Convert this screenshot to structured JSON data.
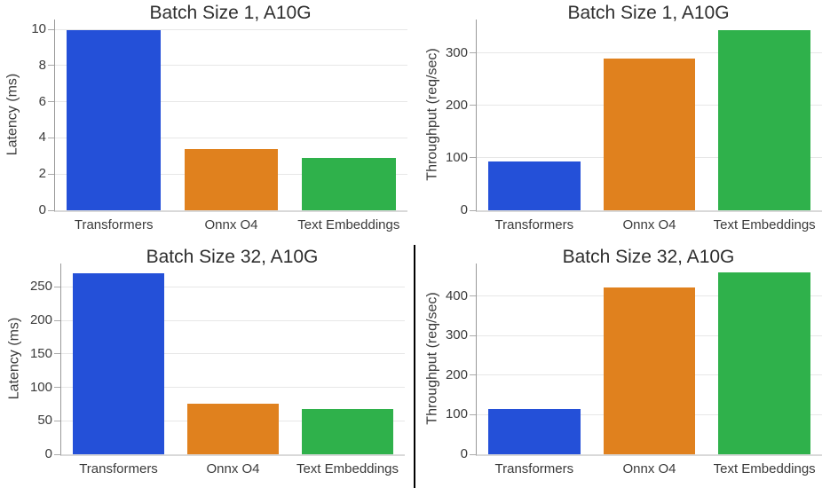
{
  "figure": {
    "background": "#ffffff",
    "divider_color": "#000000"
  },
  "palette": {
    "blue": "#2450d8",
    "orange": "#e0811e",
    "green": "#2fb14b",
    "gridline": "#e7e7e7",
    "spine": "#999999",
    "baseline": "#d9d9d9",
    "text": "#3b3b3b",
    "title_text": "#2e2e2e"
  },
  "chart_data": [
    {
      "id": "latency-batch1",
      "type": "bar",
      "title": "Batch Size 1, A10G",
      "xlabel": "",
      "ylabel": "Latency (ms)",
      "categories": [
        "Transformers",
        "Onnx O4",
        "Text Embeddings"
      ],
      "values": [
        9.95,
        3.4,
        2.9
      ],
      "yticks": [
        0,
        2,
        4,
        6,
        8,
        10
      ],
      "ylim": [
        0,
        10.55
      ],
      "grid": true,
      "legend": "none",
      "bar_colors": [
        "#2450d8",
        "#e0811e",
        "#2fb14b"
      ]
    },
    {
      "id": "throughput-batch1",
      "type": "bar",
      "title": "Batch Size 1, A10G",
      "xlabel": "",
      "ylabel": "Throughput (req/sec)",
      "categories": [
        "Transformers",
        "Onnx O4",
        "Text Embeddings"
      ],
      "values": [
        93,
        290,
        343
      ],
      "yticks": [
        0,
        100,
        200,
        300
      ],
      "ylim": [
        0,
        364
      ],
      "grid": true,
      "legend": "none",
      "bar_colors": [
        "#2450d8",
        "#e0811e",
        "#2fb14b"
      ]
    },
    {
      "id": "latency-batch32",
      "type": "bar",
      "title": "Batch Size 32, A10G",
      "xlabel": "",
      "ylabel": "Latency (ms)",
      "categories": [
        "Transformers",
        "Onnx O4",
        "Text Embeddings"
      ],
      "values": [
        270,
        75,
        68
      ],
      "yticks": [
        0,
        50,
        100,
        150,
        200,
        250
      ],
      "ylim": [
        0,
        285
      ],
      "grid": true,
      "legend": "none",
      "bar_colors": [
        "#2450d8",
        "#e0811e",
        "#2fb14b"
      ]
    },
    {
      "id": "throughput-batch32",
      "type": "bar",
      "title": "Batch Size 32, A10G",
      "xlabel": "",
      "ylabel": "Throughput (req/sec)",
      "categories": [
        "Transformers",
        "Onnx O4",
        "Text Embeddings"
      ],
      "values": [
        115,
        421,
        459
      ],
      "yticks": [
        0,
        100,
        200,
        300,
        400
      ],
      "ylim": [
        0,
        482
      ],
      "grid": true,
      "legend": "none",
      "bar_colors": [
        "#2450d8",
        "#e0811e",
        "#2fb14b"
      ]
    }
  ]
}
